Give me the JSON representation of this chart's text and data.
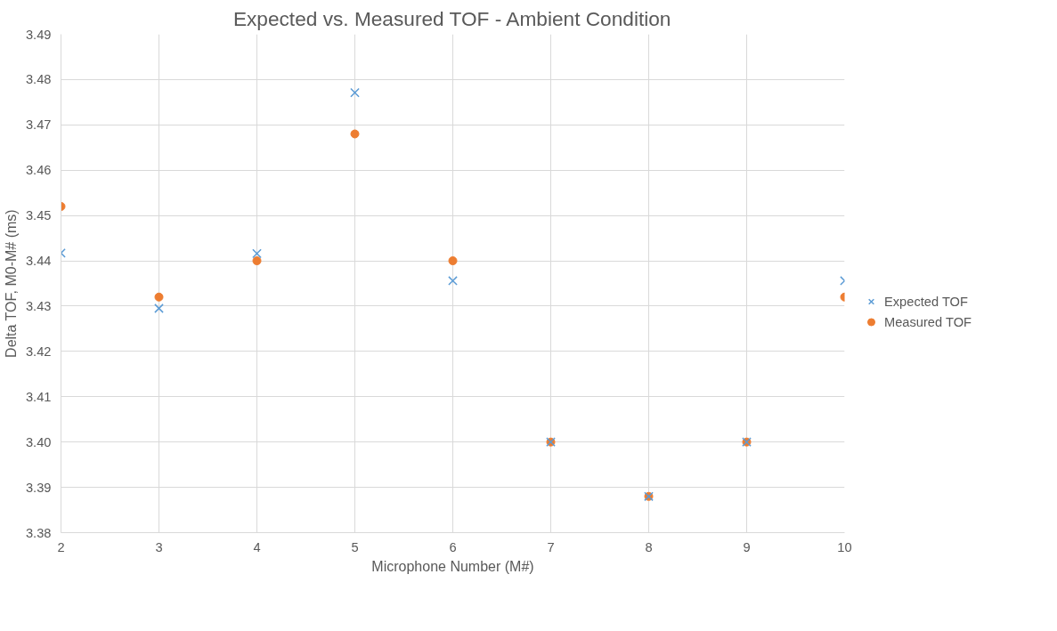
{
  "chart_data": {
    "type": "scatter",
    "title": "Expected vs. Measured TOF - Ambient Condition",
    "xlabel": "Microphone Number (M#)",
    "ylabel": "Delta TOF, M0-M# (ms)",
    "x": [
      2,
      3,
      4,
      5,
      6,
      7,
      8,
      9,
      10
    ],
    "series": [
      {
        "name": "Expected TOF",
        "color": "#5b9bd5",
        "marker": "cross",
        "values": [
          3.4417,
          3.4295,
          3.4416,
          3.4771,
          3.4356,
          3.4,
          3.388,
          3.4,
          3.4356
        ]
      },
      {
        "name": "Measured TOF",
        "color": "#ed7d31",
        "marker": "circle",
        "values": [
          3.452,
          3.432,
          3.44,
          3.468,
          3.44,
          3.4,
          3.388,
          3.4,
          3.432
        ]
      }
    ],
    "xlim": [
      2,
      10
    ],
    "xticks": [
      2,
      3,
      4,
      5,
      6,
      7,
      8,
      9,
      10
    ],
    "ylim": [
      3.38,
      3.49
    ],
    "yticks": [
      {
        "value": 3.38,
        "label": "3.38"
      },
      {
        "value": 3.39,
        "label": "3.39"
      },
      {
        "value": 3.4,
        "label": "3.40"
      },
      {
        "value": 3.41,
        "label": "3.41"
      },
      {
        "value": 3.42,
        "label": "3.42"
      },
      {
        "value": 3.43,
        "label": "3.43"
      },
      {
        "value": 3.44,
        "label": "3.44"
      },
      {
        "value": 3.45,
        "label": "3.45"
      },
      {
        "value": 3.46,
        "label": "3.46"
      },
      {
        "value": 3.47,
        "label": "3.47"
      },
      {
        "value": 3.48,
        "label": "3.48"
      },
      {
        "value": 3.49,
        "label": "3.49"
      }
    ],
    "grid": true,
    "legend": "right"
  }
}
